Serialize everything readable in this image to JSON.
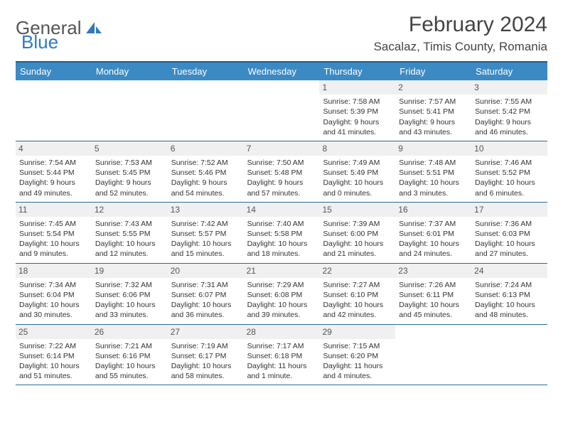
{
  "logo": {
    "text1": "General",
    "text2": "Blue"
  },
  "title": "February 2024",
  "location": "Sacalaz, Timis County, Romania",
  "colors": {
    "header_bar": "#3b8ac4",
    "header_border_top": "#1f5c8b",
    "week_divider": "#2a6aa0",
    "daynum_bg": "#f0f0f0",
    "text": "#333333",
    "logo_gray": "#555555",
    "logo_blue": "#2f7ac0"
  },
  "day_headers": [
    "Sunday",
    "Monday",
    "Tuesday",
    "Wednesday",
    "Thursday",
    "Friday",
    "Saturday"
  ],
  "weeks": [
    [
      {
        "n": "",
        "sr": "",
        "ss": "",
        "dl": ""
      },
      {
        "n": "",
        "sr": "",
        "ss": "",
        "dl": ""
      },
      {
        "n": "",
        "sr": "",
        "ss": "",
        "dl": ""
      },
      {
        "n": "",
        "sr": "",
        "ss": "",
        "dl": ""
      },
      {
        "n": "1",
        "sr": "Sunrise: 7:58 AM",
        "ss": "Sunset: 5:39 PM",
        "dl": "Daylight: 9 hours and 41 minutes."
      },
      {
        "n": "2",
        "sr": "Sunrise: 7:57 AM",
        "ss": "Sunset: 5:41 PM",
        "dl": "Daylight: 9 hours and 43 minutes."
      },
      {
        "n": "3",
        "sr": "Sunrise: 7:55 AM",
        "ss": "Sunset: 5:42 PM",
        "dl": "Daylight: 9 hours and 46 minutes."
      }
    ],
    [
      {
        "n": "4",
        "sr": "Sunrise: 7:54 AM",
        "ss": "Sunset: 5:44 PM",
        "dl": "Daylight: 9 hours and 49 minutes."
      },
      {
        "n": "5",
        "sr": "Sunrise: 7:53 AM",
        "ss": "Sunset: 5:45 PM",
        "dl": "Daylight: 9 hours and 52 minutes."
      },
      {
        "n": "6",
        "sr": "Sunrise: 7:52 AM",
        "ss": "Sunset: 5:46 PM",
        "dl": "Daylight: 9 hours and 54 minutes."
      },
      {
        "n": "7",
        "sr": "Sunrise: 7:50 AM",
        "ss": "Sunset: 5:48 PM",
        "dl": "Daylight: 9 hours and 57 minutes."
      },
      {
        "n": "8",
        "sr": "Sunrise: 7:49 AM",
        "ss": "Sunset: 5:49 PM",
        "dl": "Daylight: 10 hours and 0 minutes."
      },
      {
        "n": "9",
        "sr": "Sunrise: 7:48 AM",
        "ss": "Sunset: 5:51 PM",
        "dl": "Daylight: 10 hours and 3 minutes."
      },
      {
        "n": "10",
        "sr": "Sunrise: 7:46 AM",
        "ss": "Sunset: 5:52 PM",
        "dl": "Daylight: 10 hours and 6 minutes."
      }
    ],
    [
      {
        "n": "11",
        "sr": "Sunrise: 7:45 AM",
        "ss": "Sunset: 5:54 PM",
        "dl": "Daylight: 10 hours and 9 minutes."
      },
      {
        "n": "12",
        "sr": "Sunrise: 7:43 AM",
        "ss": "Sunset: 5:55 PM",
        "dl": "Daylight: 10 hours and 12 minutes."
      },
      {
        "n": "13",
        "sr": "Sunrise: 7:42 AM",
        "ss": "Sunset: 5:57 PM",
        "dl": "Daylight: 10 hours and 15 minutes."
      },
      {
        "n": "14",
        "sr": "Sunrise: 7:40 AM",
        "ss": "Sunset: 5:58 PM",
        "dl": "Daylight: 10 hours and 18 minutes."
      },
      {
        "n": "15",
        "sr": "Sunrise: 7:39 AM",
        "ss": "Sunset: 6:00 PM",
        "dl": "Daylight: 10 hours and 21 minutes."
      },
      {
        "n": "16",
        "sr": "Sunrise: 7:37 AM",
        "ss": "Sunset: 6:01 PM",
        "dl": "Daylight: 10 hours and 24 minutes."
      },
      {
        "n": "17",
        "sr": "Sunrise: 7:36 AM",
        "ss": "Sunset: 6:03 PM",
        "dl": "Daylight: 10 hours and 27 minutes."
      }
    ],
    [
      {
        "n": "18",
        "sr": "Sunrise: 7:34 AM",
        "ss": "Sunset: 6:04 PM",
        "dl": "Daylight: 10 hours and 30 minutes."
      },
      {
        "n": "19",
        "sr": "Sunrise: 7:32 AM",
        "ss": "Sunset: 6:06 PM",
        "dl": "Daylight: 10 hours and 33 minutes."
      },
      {
        "n": "20",
        "sr": "Sunrise: 7:31 AM",
        "ss": "Sunset: 6:07 PM",
        "dl": "Daylight: 10 hours and 36 minutes."
      },
      {
        "n": "21",
        "sr": "Sunrise: 7:29 AM",
        "ss": "Sunset: 6:08 PM",
        "dl": "Daylight: 10 hours and 39 minutes."
      },
      {
        "n": "22",
        "sr": "Sunrise: 7:27 AM",
        "ss": "Sunset: 6:10 PM",
        "dl": "Daylight: 10 hours and 42 minutes."
      },
      {
        "n": "23",
        "sr": "Sunrise: 7:26 AM",
        "ss": "Sunset: 6:11 PM",
        "dl": "Daylight: 10 hours and 45 minutes."
      },
      {
        "n": "24",
        "sr": "Sunrise: 7:24 AM",
        "ss": "Sunset: 6:13 PM",
        "dl": "Daylight: 10 hours and 48 minutes."
      }
    ],
    [
      {
        "n": "25",
        "sr": "Sunrise: 7:22 AM",
        "ss": "Sunset: 6:14 PM",
        "dl": "Daylight: 10 hours and 51 minutes."
      },
      {
        "n": "26",
        "sr": "Sunrise: 7:21 AM",
        "ss": "Sunset: 6:16 PM",
        "dl": "Daylight: 10 hours and 55 minutes."
      },
      {
        "n": "27",
        "sr": "Sunrise: 7:19 AM",
        "ss": "Sunset: 6:17 PM",
        "dl": "Daylight: 10 hours and 58 minutes."
      },
      {
        "n": "28",
        "sr": "Sunrise: 7:17 AM",
        "ss": "Sunset: 6:18 PM",
        "dl": "Daylight: 11 hours and 1 minute."
      },
      {
        "n": "29",
        "sr": "Sunrise: 7:15 AM",
        "ss": "Sunset: 6:20 PM",
        "dl": "Daylight: 11 hours and 4 minutes."
      },
      {
        "n": "",
        "sr": "",
        "ss": "",
        "dl": ""
      },
      {
        "n": "",
        "sr": "",
        "ss": "",
        "dl": ""
      }
    ]
  ]
}
